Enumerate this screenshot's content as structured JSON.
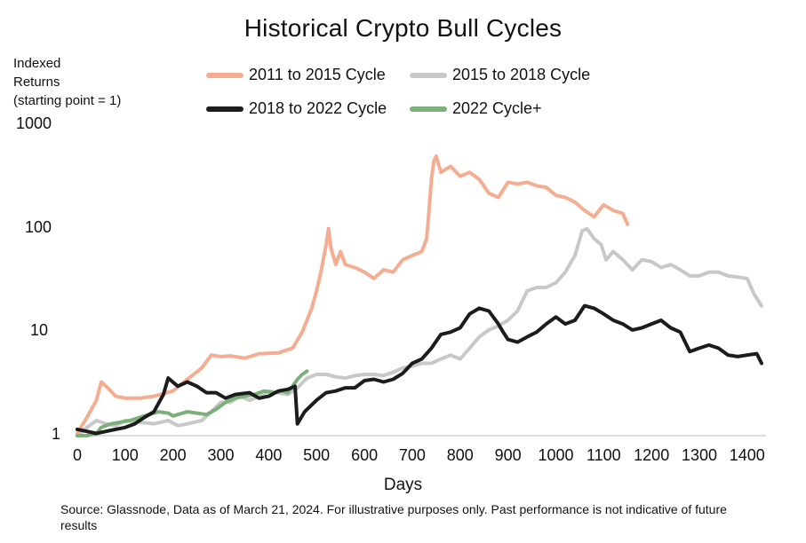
{
  "chart_data": {
    "type": "line",
    "title": "Historical Crypto Bull Cycles",
    "ylabel_lines": [
      "Indexed",
      "Returns",
      "(starting point = 1)"
    ],
    "xlabel": "Days",
    "yscale": "log",
    "ylim": [
      1,
      1000
    ],
    "xlim": [
      0,
      1430
    ],
    "yticks": [
      "1000",
      "100",
      "10",
      "1"
    ],
    "ytick_values": [
      1000,
      100,
      10,
      1
    ],
    "xticks": [
      "0",
      "100",
      "200",
      "300",
      "400",
      "500",
      "600",
      "700",
      "800",
      "900",
      "1000",
      "1100",
      "1200",
      "1300",
      "1400"
    ],
    "xtick_values": [
      0,
      100,
      200,
      300,
      400,
      500,
      600,
      700,
      800,
      900,
      1000,
      1100,
      1200,
      1300,
      1400
    ],
    "grid": false,
    "legend_position": "top-center",
    "series": [
      {
        "name": "2011 to 2015 Cycle",
        "color": "#f5ad92",
        "points": [
          [
            0,
            1.05
          ],
          [
            20,
            1.5
          ],
          [
            40,
            2.2
          ],
          [
            50,
            3.3
          ],
          [
            60,
            3.0
          ],
          [
            70,
            2.7
          ],
          [
            80,
            2.4
          ],
          [
            100,
            2.3
          ],
          [
            130,
            2.3
          ],
          [
            160,
            2.4
          ],
          [
            200,
            2.7
          ],
          [
            230,
            3.5
          ],
          [
            260,
            4.5
          ],
          [
            280,
            6.0
          ],
          [
            300,
            5.8
          ],
          [
            320,
            5.9
          ],
          [
            350,
            5.6
          ],
          [
            380,
            6.2
          ],
          [
            420,
            6.3
          ],
          [
            450,
            7.0
          ],
          [
            470,
            10
          ],
          [
            490,
            17
          ],
          [
            500,
            25
          ],
          [
            510,
            40
          ],
          [
            520,
            70
          ],
          [
            525,
            100
          ],
          [
            530,
            65
          ],
          [
            540,
            45
          ],
          [
            550,
            60
          ],
          [
            560,
            45
          ],
          [
            580,
            42
          ],
          [
            600,
            38
          ],
          [
            620,
            33
          ],
          [
            640,
            40
          ],
          [
            660,
            38
          ],
          [
            680,
            50
          ],
          [
            700,
            55
          ],
          [
            720,
            60
          ],
          [
            730,
            80
          ],
          [
            735,
            150
          ],
          [
            740,
            300
          ],
          [
            745,
            450
          ],
          [
            750,
            500
          ],
          [
            760,
            350
          ],
          [
            780,
            400
          ],
          [
            800,
            320
          ],
          [
            820,
            350
          ],
          [
            840,
            300
          ],
          [
            860,
            220
          ],
          [
            880,
            200
          ],
          [
            900,
            280
          ],
          [
            920,
            270
          ],
          [
            940,
            280
          ],
          [
            960,
            260
          ],
          [
            980,
            250
          ],
          [
            1000,
            210
          ],
          [
            1020,
            200
          ],
          [
            1040,
            180
          ],
          [
            1060,
            150
          ],
          [
            1080,
            130
          ],
          [
            1100,
            170
          ],
          [
            1120,
            150
          ],
          [
            1140,
            140
          ],
          [
            1150,
            110
          ]
        ]
      },
      {
        "name": "2015 to 2018 Cycle",
        "color": "#c8c8c8",
        "points": [
          [
            0,
            1.0
          ],
          [
            20,
            1.2
          ],
          [
            40,
            1.4
          ],
          [
            60,
            1.3
          ],
          [
            80,
            1.25
          ],
          [
            100,
            1.4
          ],
          [
            130,
            1.35
          ],
          [
            160,
            1.3
          ],
          [
            190,
            1.4
          ],
          [
            210,
            1.25
          ],
          [
            230,
            1.3
          ],
          [
            260,
            1.4
          ],
          [
            280,
            1.7
          ],
          [
            300,
            2.1
          ],
          [
            320,
            2.1
          ],
          [
            340,
            2.4
          ],
          [
            360,
            2.2
          ],
          [
            380,
            2.4
          ],
          [
            400,
            2.7
          ],
          [
            420,
            2.6
          ],
          [
            440,
            2.5
          ],
          [
            460,
            2.9
          ],
          [
            480,
            3.6
          ],
          [
            500,
            3.9
          ],
          [
            520,
            3.9
          ],
          [
            540,
            3.7
          ],
          [
            560,
            3.6
          ],
          [
            580,
            3.8
          ],
          [
            600,
            3.9
          ],
          [
            620,
            3.9
          ],
          [
            640,
            3.8
          ],
          [
            660,
            4.1
          ],
          [
            680,
            4.5
          ],
          [
            700,
            4.7
          ],
          [
            720,
            5.0
          ],
          [
            740,
            5.0
          ],
          [
            760,
            5.5
          ],
          [
            780,
            6.0
          ],
          [
            800,
            5.5
          ],
          [
            820,
            7.0
          ],
          [
            840,
            9.0
          ],
          [
            860,
            10.5
          ],
          [
            880,
            11.5
          ],
          [
            900,
            13
          ],
          [
            920,
            16
          ],
          [
            940,
            25
          ],
          [
            960,
            27
          ],
          [
            980,
            27
          ],
          [
            1000,
            30
          ],
          [
            1020,
            38
          ],
          [
            1040,
            55
          ],
          [
            1055,
            95
          ],
          [
            1065,
            100
          ],
          [
            1080,
            80
          ],
          [
            1095,
            70
          ],
          [
            1105,
            50
          ],
          [
            1120,
            60
          ],
          [
            1140,
            50
          ],
          [
            1160,
            40
          ],
          [
            1180,
            50
          ],
          [
            1200,
            48
          ],
          [
            1220,
            42
          ],
          [
            1240,
            45
          ],
          [
            1260,
            40
          ],
          [
            1280,
            35
          ],
          [
            1300,
            35
          ],
          [
            1320,
            38
          ],
          [
            1340,
            38
          ],
          [
            1360,
            35
          ],
          [
            1380,
            34
          ],
          [
            1400,
            33
          ],
          [
            1415,
            23
          ],
          [
            1430,
            18
          ]
        ]
      },
      {
        "name": "2018 to 2022 Cycle",
        "color": "#1c1c1c",
        "points": [
          [
            0,
            1.15
          ],
          [
            20,
            1.1
          ],
          [
            40,
            1.05
          ],
          [
            60,
            1.1
          ],
          [
            80,
            1.15
          ],
          [
            100,
            1.2
          ],
          [
            120,
            1.3
          ],
          [
            140,
            1.5
          ],
          [
            160,
            1.7
          ],
          [
            180,
            2.5
          ],
          [
            190,
            3.6
          ],
          [
            210,
            3.0
          ],
          [
            230,
            3.3
          ],
          [
            250,
            3.0
          ],
          [
            270,
            2.6
          ],
          [
            290,
            2.6
          ],
          [
            310,
            2.3
          ],
          [
            330,
            2.5
          ],
          [
            360,
            2.6
          ],
          [
            380,
            2.3
          ],
          [
            400,
            2.4
          ],
          [
            420,
            2.7
          ],
          [
            440,
            2.8
          ],
          [
            455,
            3.0
          ],
          [
            460,
            1.3
          ],
          [
            475,
            1.7
          ],
          [
            500,
            2.2
          ],
          [
            520,
            2.6
          ],
          [
            540,
            2.7
          ],
          [
            560,
            2.9
          ],
          [
            580,
            2.9
          ],
          [
            600,
            3.4
          ],
          [
            620,
            3.5
          ],
          [
            640,
            3.3
          ],
          [
            660,
            3.5
          ],
          [
            680,
            4.0
          ],
          [
            700,
            5.0
          ],
          [
            720,
            5.5
          ],
          [
            740,
            7.0
          ],
          [
            760,
            9.5
          ],
          [
            780,
            10
          ],
          [
            800,
            11
          ],
          [
            820,
            15
          ],
          [
            840,
            17
          ],
          [
            860,
            16
          ],
          [
            880,
            12
          ],
          [
            890,
            10
          ],
          [
            900,
            8.5
          ],
          [
            920,
            8.0
          ],
          [
            940,
            9.0
          ],
          [
            960,
            10
          ],
          [
            980,
            12
          ],
          [
            1000,
            14
          ],
          [
            1020,
            12
          ],
          [
            1040,
            13
          ],
          [
            1060,
            18
          ],
          [
            1080,
            17
          ],
          [
            1100,
            15
          ],
          [
            1120,
            13
          ],
          [
            1140,
            12
          ],
          [
            1160,
            10.5
          ],
          [
            1180,
            11
          ],
          [
            1200,
            12
          ],
          [
            1220,
            13
          ],
          [
            1240,
            11
          ],
          [
            1260,
            10
          ],
          [
            1280,
            6.5
          ],
          [
            1300,
            7.0
          ],
          [
            1320,
            7.5
          ],
          [
            1340,
            7.0
          ],
          [
            1360,
            6.0
          ],
          [
            1380,
            5.8
          ],
          [
            1400,
            6.0
          ],
          [
            1420,
            6.2
          ],
          [
            1430,
            5.0
          ]
        ]
      },
      {
        "name": "2022 Cycle+",
        "color": "#7cb07a",
        "points": [
          [
            0,
            1.0
          ],
          [
            20,
            1.0
          ],
          [
            40,
            1.05
          ],
          [
            50,
            1.2
          ],
          [
            70,
            1.3
          ],
          [
            90,
            1.35
          ],
          [
            110,
            1.4
          ],
          [
            130,
            1.5
          ],
          [
            150,
            1.6
          ],
          [
            170,
            1.7
          ],
          [
            190,
            1.65
          ],
          [
            200,
            1.55
          ],
          [
            210,
            1.6
          ],
          [
            230,
            1.7
          ],
          [
            250,
            1.65
          ],
          [
            270,
            1.6
          ],
          [
            290,
            1.8
          ],
          [
            310,
            2.1
          ],
          [
            330,
            2.3
          ],
          [
            350,
            2.4
          ],
          [
            370,
            2.5
          ],
          [
            390,
            2.7
          ],
          [
            410,
            2.6
          ],
          [
            430,
            2.7
          ],
          [
            440,
            2.6
          ],
          [
            450,
            3.0
          ],
          [
            460,
            3.5
          ],
          [
            470,
            3.9
          ],
          [
            480,
            4.2
          ]
        ]
      }
    ]
  },
  "footnote": "Source: Glassnode, Data as of March 21, 2024. For illustrative purposes only. Past performance is not indicative of future results"
}
